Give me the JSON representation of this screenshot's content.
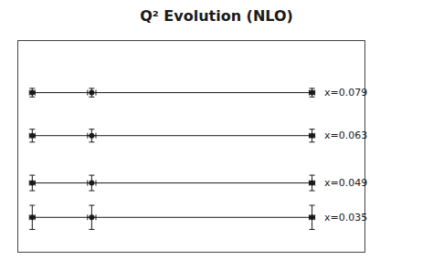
{
  "chart_data": {
    "type": "scatter",
    "title": "Q² Evolution (NLO)",
    "color": "#1a1a1a",
    "marker": "circle",
    "grid": false,
    "tick_labels": false,
    "xlim": [
      0.1,
      10.0
    ],
    "ylim": [
      0.3,
      5.2
    ],
    "series": [
      {
        "name": "x=0.079",
        "x": [
          0.5,
          2.2,
          8.5
        ],
        "values": [
          4.0,
          4.0,
          4.0
        ],
        "xerr": [
          0.08,
          0.12,
          0.08
        ],
        "yerr_lo": [
          0.1,
          0.1,
          0.1
        ],
        "yerr_hi": [
          0.1,
          0.1,
          0.1
        ]
      },
      {
        "name": "x=0.063",
        "x": [
          0.5,
          2.2,
          8.5
        ],
        "values": [
          3.0,
          3.0,
          3.0
        ],
        "xerr": [
          0.08,
          0.12,
          0.08
        ],
        "yerr_lo": [
          0.15,
          0.15,
          0.15
        ],
        "yerr_hi": [
          0.15,
          0.15,
          0.15
        ]
      },
      {
        "name": "x=0.049",
        "x": [
          0.5,
          2.2,
          8.5
        ],
        "values": [
          1.9,
          1.9,
          1.9
        ],
        "xerr": [
          0.08,
          0.12,
          0.08
        ],
        "yerr_lo": [
          0.18,
          0.18,
          0.18
        ],
        "yerr_hi": [
          0.18,
          0.18,
          0.18
        ]
      },
      {
        "name": "x=0.035",
        "x": [
          0.5,
          2.2,
          8.5
        ],
        "values": [
          1.1,
          1.1,
          1.1
        ],
        "xerr": [
          0.08,
          0.12,
          0.08
        ],
        "yerr_lo": [
          0.28,
          0.28,
          0.28
        ],
        "yerr_hi": [
          0.28,
          0.28,
          0.28
        ]
      }
    ]
  }
}
